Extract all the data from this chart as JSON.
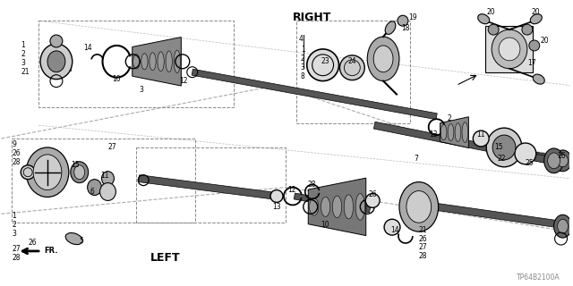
{
  "bg_color": "#ffffff",
  "lc": "#000000",
  "right_label": "RIGHT",
  "left_label": "LEFT",
  "fr_label": "FR.",
  "diagram_code": "TP64B2100A",
  "figsize": [
    6.4,
    3.2
  ],
  "dpi": 100
}
